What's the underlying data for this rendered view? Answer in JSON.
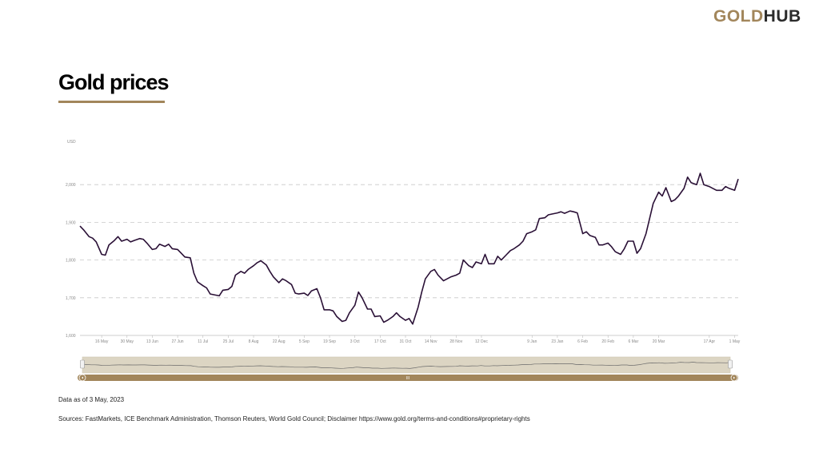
{
  "logo": {
    "gold": "GOLD",
    "hub": "HUB"
  },
  "title": "Gold prices",
  "footer": {
    "as_of": "Data as of 3 May, 2023",
    "sources": "Sources: FastMarkets, ICE Benchmark Administration, Thomson Reuters, World Gold Council; Disclaimer https://www.gold.org/terms-and-conditions#proprietary-rights"
  },
  "colors": {
    "accent": "#a2865b",
    "line": "#2a1036",
    "grid": "#c8c8c8",
    "navigator_bg": "#dcd5c3"
  },
  "navigator": {
    "handle_label": "III"
  },
  "chart_data": {
    "type": "line",
    "ylabel": "USD",
    "ylim": [
      1600,
      2100
    ],
    "yticks": [
      1600,
      1700,
      1800,
      1900,
      2000
    ],
    "ytick_labels": [
      "1,600",
      "1,700",
      "1,800",
      "1,900",
      "2,000"
    ],
    "xlim": [
      "2022-05-04",
      "2023-05-03"
    ],
    "x_ticks": [
      {
        "date": "2022-05-16",
        "label": "16 May"
      },
      {
        "date": "2022-05-30",
        "label": "30 May"
      },
      {
        "date": "2022-06-13",
        "label": "13 Jun"
      },
      {
        "date": "2022-06-27",
        "label": "27 Jun"
      },
      {
        "date": "2022-07-11",
        "label": "11 Jul"
      },
      {
        "date": "2022-07-25",
        "label": "25 Jul"
      },
      {
        "date": "2022-08-08",
        "label": "8 Aug"
      },
      {
        "date": "2022-08-22",
        "label": "22 Aug"
      },
      {
        "date": "2022-09-05",
        "label": "5 Sep"
      },
      {
        "date": "2022-09-19",
        "label": "19 Sep"
      },
      {
        "date": "2022-10-03",
        "label": "3 Oct"
      },
      {
        "date": "2022-10-17",
        "label": "17 Oct"
      },
      {
        "date": "2022-10-31",
        "label": "31 Oct"
      },
      {
        "date": "2022-11-14",
        "label": "14 Nov"
      },
      {
        "date": "2022-11-28",
        "label": "28 Nov"
      },
      {
        "date": "2022-12-12",
        "label": "12 Dec"
      },
      {
        "date": "2023-01-09",
        "label": "9 Jan"
      },
      {
        "date": "2023-01-23",
        "label": "23 Jan"
      },
      {
        "date": "2023-02-06",
        "label": "6 Feb"
      },
      {
        "date": "2023-02-20",
        "label": "20 Feb"
      },
      {
        "date": "2023-03-06",
        "label": "6 Mar"
      },
      {
        "date": "2023-03-20",
        "label": "20 Mar"
      },
      {
        "date": "2023-04-17",
        "label": "17 Apr"
      },
      {
        "date": "2023-05-01",
        "label": "1 May"
      }
    ],
    "grid": true,
    "series": [
      {
        "points": [
          [
            "2022-05-04",
            1890
          ],
          [
            "2022-05-06",
            1880
          ],
          [
            "2022-05-09",
            1862
          ],
          [
            "2022-05-11",
            1858
          ],
          [
            "2022-05-13",
            1848
          ],
          [
            "2022-05-16",
            1815
          ],
          [
            "2022-05-18",
            1813
          ],
          [
            "2022-05-20",
            1840
          ],
          [
            "2022-05-23",
            1852
          ],
          [
            "2022-05-25",
            1862
          ],
          [
            "2022-05-27",
            1850
          ],
          [
            "2022-05-30",
            1855
          ],
          [
            "2022-06-01",
            1848
          ],
          [
            "2022-06-03",
            1852
          ],
          [
            "2022-06-06",
            1857
          ],
          [
            "2022-06-08",
            1855
          ],
          [
            "2022-06-10",
            1845
          ],
          [
            "2022-06-13",
            1828
          ],
          [
            "2022-06-15",
            1830
          ],
          [
            "2022-06-17",
            1842
          ],
          [
            "2022-06-20",
            1836
          ],
          [
            "2022-06-22",
            1842
          ],
          [
            "2022-06-24",
            1830
          ],
          [
            "2022-06-27",
            1828
          ],
          [
            "2022-06-29",
            1818
          ],
          [
            "2022-07-01",
            1808
          ],
          [
            "2022-07-04",
            1806
          ],
          [
            "2022-07-06",
            1765
          ],
          [
            "2022-07-08",
            1742
          ],
          [
            "2022-07-11",
            1732
          ],
          [
            "2022-07-13",
            1726
          ],
          [
            "2022-07-15",
            1710
          ],
          [
            "2022-07-18",
            1707
          ],
          [
            "2022-07-20",
            1705
          ],
          [
            "2022-07-22",
            1720
          ],
          [
            "2022-07-25",
            1722
          ],
          [
            "2022-07-27",
            1730
          ],
          [
            "2022-07-29",
            1760
          ],
          [
            "2022-08-01",
            1770
          ],
          [
            "2022-08-03",
            1765
          ],
          [
            "2022-08-05",
            1775
          ],
          [
            "2022-08-08",
            1785
          ],
          [
            "2022-08-10",
            1793
          ],
          [
            "2022-08-12",
            1798
          ],
          [
            "2022-08-15",
            1787
          ],
          [
            "2022-08-17",
            1770
          ],
          [
            "2022-08-19",
            1755
          ],
          [
            "2022-08-22",
            1740
          ],
          [
            "2022-08-24",
            1750
          ],
          [
            "2022-08-26",
            1745
          ],
          [
            "2022-08-29",
            1735
          ],
          [
            "2022-08-31",
            1712
          ],
          [
            "2022-09-02",
            1710
          ],
          [
            "2022-09-05",
            1712
          ],
          [
            "2022-09-07",
            1706
          ],
          [
            "2022-09-09",
            1718
          ],
          [
            "2022-09-12",
            1724
          ],
          [
            "2022-09-14",
            1700
          ],
          [
            "2022-09-16",
            1668
          ],
          [
            "2022-09-19",
            1668
          ],
          [
            "2022-09-21",
            1665
          ],
          [
            "2022-09-23",
            1650
          ],
          [
            "2022-09-26",
            1637
          ],
          [
            "2022-09-28",
            1640
          ],
          [
            "2022-09-30",
            1660
          ],
          [
            "2022-10-03",
            1680
          ],
          [
            "2022-10-05",
            1715
          ],
          [
            "2022-10-07",
            1700
          ],
          [
            "2022-10-10",
            1670
          ],
          [
            "2022-10-12",
            1670
          ],
          [
            "2022-10-14",
            1650
          ],
          [
            "2022-10-17",
            1652
          ],
          [
            "2022-10-19",
            1635
          ],
          [
            "2022-10-21",
            1640
          ],
          [
            "2022-10-24",
            1650
          ],
          [
            "2022-10-26",
            1660
          ],
          [
            "2022-10-28",
            1650
          ],
          [
            "2022-10-31",
            1640
          ],
          [
            "2022-11-02",
            1645
          ],
          [
            "2022-11-04",
            1630
          ],
          [
            "2022-11-07",
            1675
          ],
          [
            "2022-11-09",
            1715
          ],
          [
            "2022-11-11",
            1750
          ],
          [
            "2022-11-14",
            1770
          ],
          [
            "2022-11-16",
            1775
          ],
          [
            "2022-11-18",
            1760
          ],
          [
            "2022-11-21",
            1745
          ],
          [
            "2022-11-23",
            1750
          ],
          [
            "2022-11-25",
            1755
          ],
          [
            "2022-11-28",
            1760
          ],
          [
            "2022-11-30",
            1765
          ],
          [
            "2022-12-02",
            1800
          ],
          [
            "2022-12-05",
            1785
          ],
          [
            "2022-12-07",
            1780
          ],
          [
            "2022-12-09",
            1795
          ],
          [
            "2022-12-12",
            1790
          ],
          [
            "2022-12-14",
            1815
          ],
          [
            "2022-12-16",
            1790
          ],
          [
            "2022-12-19",
            1790
          ],
          [
            "2022-12-21",
            1810
          ],
          [
            "2022-12-23",
            1800
          ],
          [
            "2022-12-26",
            1815
          ],
          [
            "2022-12-28",
            1825
          ],
          [
            "2022-12-30",
            1830
          ],
          [
            "2023-01-02",
            1840
          ],
          [
            "2023-01-04",
            1850
          ],
          [
            "2023-01-06",
            1870
          ],
          [
            "2023-01-09",
            1875
          ],
          [
            "2023-01-11",
            1880
          ],
          [
            "2023-01-13",
            1910
          ],
          [
            "2023-01-16",
            1912
          ],
          [
            "2023-01-18",
            1920
          ],
          [
            "2023-01-20",
            1922
          ],
          [
            "2023-01-23",
            1925
          ],
          [
            "2023-01-25",
            1928
          ],
          [
            "2023-01-27",
            1924
          ],
          [
            "2023-01-30",
            1930
          ],
          [
            "2023-02-01",
            1928
          ],
          [
            "2023-02-03",
            1925
          ],
          [
            "2023-02-06",
            1870
          ],
          [
            "2023-02-08",
            1875
          ],
          [
            "2023-02-10",
            1865
          ],
          [
            "2023-02-13",
            1860
          ],
          [
            "2023-02-15",
            1840
          ],
          [
            "2023-02-17",
            1840
          ],
          [
            "2023-02-20",
            1845
          ],
          [
            "2023-02-22",
            1835
          ],
          [
            "2023-02-24",
            1822
          ],
          [
            "2023-02-27",
            1815
          ],
          [
            "2023-03-01",
            1830
          ],
          [
            "2023-03-03",
            1850
          ],
          [
            "2023-03-06",
            1850
          ],
          [
            "2023-03-08",
            1818
          ],
          [
            "2023-03-10",
            1830
          ],
          [
            "2023-03-13",
            1870
          ],
          [
            "2023-03-15",
            1910
          ],
          [
            "2023-03-17",
            1950
          ],
          [
            "2023-03-20",
            1980
          ],
          [
            "2023-03-22",
            1970
          ],
          [
            "2023-03-24",
            1992
          ],
          [
            "2023-03-27",
            1955
          ],
          [
            "2023-03-29",
            1960
          ],
          [
            "2023-03-31",
            1970
          ],
          [
            "2023-04-03",
            1990
          ],
          [
            "2023-04-05",
            2020
          ],
          [
            "2023-04-07",
            2005
          ],
          [
            "2023-04-10",
            2000
          ],
          [
            "2023-04-12",
            2030
          ],
          [
            "2023-04-14",
            2000
          ],
          [
            "2023-04-17",
            1995
          ],
          [
            "2023-04-19",
            1990
          ],
          [
            "2023-04-21",
            1985
          ],
          [
            "2023-04-24",
            1985
          ],
          [
            "2023-04-26",
            1995
          ],
          [
            "2023-04-28",
            1990
          ],
          [
            "2023-05-01",
            1985
          ],
          [
            "2023-05-03",
            2015
          ]
        ]
      }
    ]
  }
}
